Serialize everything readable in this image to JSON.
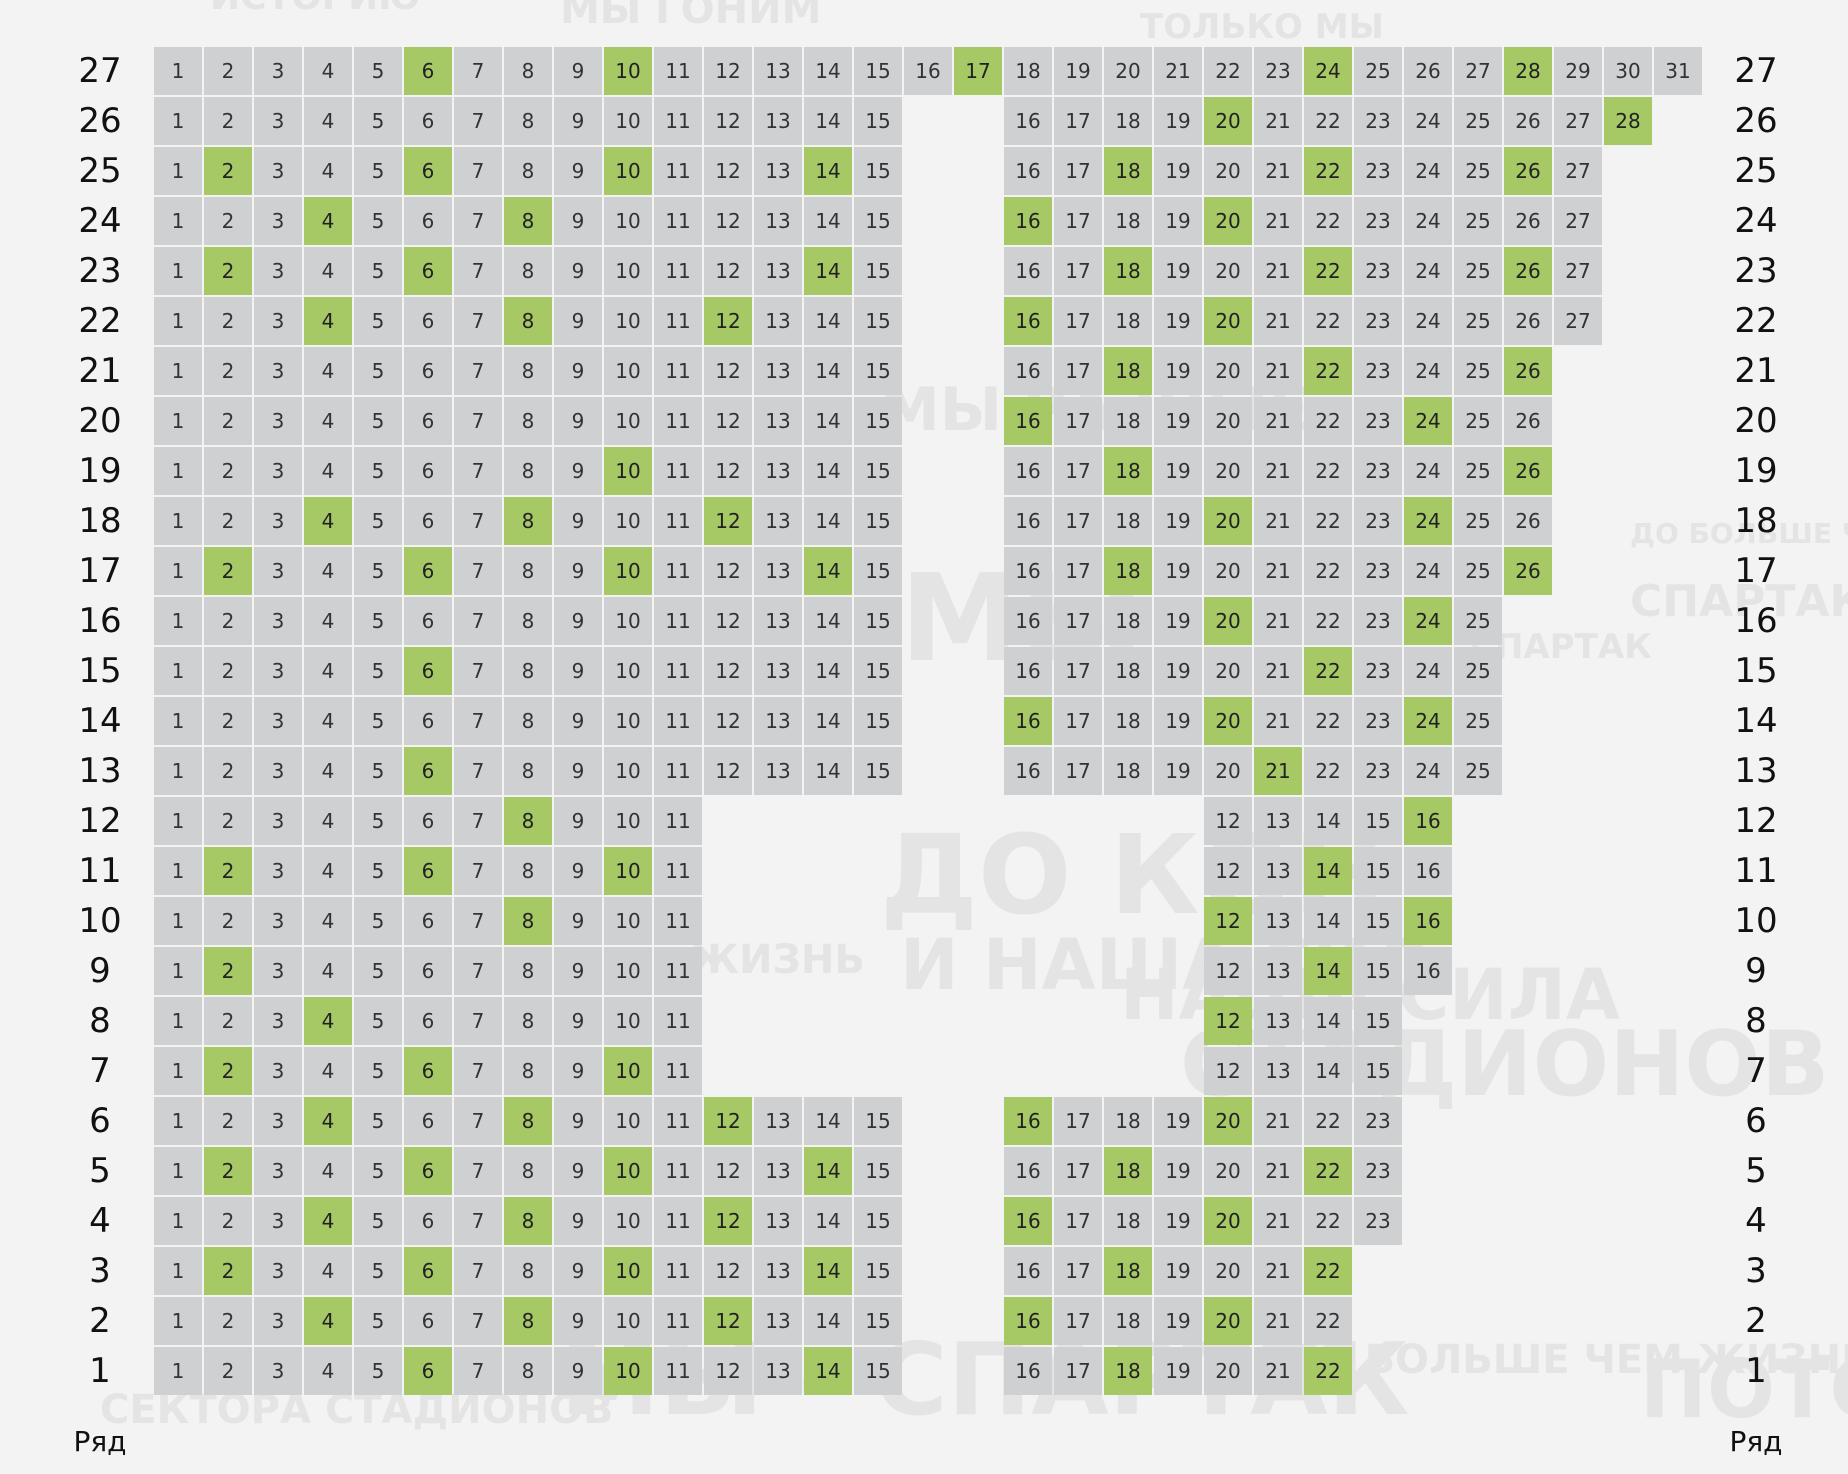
{
  "row_word": "Ряд",
  "background_words": [
    "МЫ ГОНИМ",
    "ТОЛЬКО МЫ",
    "ИСТОРИЮ",
    "МЫ РАЗНЫЕ",
    "МЫ",
    "ДО КОН",
    "И НАША СИЛ",
    "ЖИЗНЬ",
    "МЫ - СПАРТАК",
    "ЭТО БОЛЬШЕ ЧЕМ ЖИЗНЬ",
    "ПОТОМ",
    "СПАРТАК - ЭТО",
    "ДО БОЛЬШЕ ЧЕМ",
    "СЕКТОРА СТАДИОНОВ",
    "НАША СИЛА",
    "СПАРТАК",
    "СТАДИОНОВ"
  ],
  "highlight_colors": {
    "seat": "#cfd0d2",
    "free": "#a6c965"
  },
  "rows": [
    {
      "row": 27,
      "blocks": [
        {
          "from": 1,
          "to": 31,
          "col": 0
        }
      ],
      "free": [
        6,
        10,
        17,
        24,
        28
      ]
    },
    {
      "row": 26,
      "blocks": [
        {
          "from": 1,
          "to": 15,
          "col": 0
        },
        {
          "from": 16,
          "to": 28,
          "col": 17
        }
      ],
      "free": [
        20,
        28
      ]
    },
    {
      "row": 25,
      "blocks": [
        {
          "from": 1,
          "to": 15,
          "col": 0
        },
        {
          "from": 16,
          "to": 27,
          "col": 17
        }
      ],
      "free": [
        2,
        6,
        10,
        14,
        18,
        22,
        26
      ]
    },
    {
      "row": 24,
      "blocks": [
        {
          "from": 1,
          "to": 15,
          "col": 0
        },
        {
          "from": 16,
          "to": 27,
          "col": 17
        }
      ],
      "free": [
        4,
        8,
        16,
        20
      ]
    },
    {
      "row": 23,
      "blocks": [
        {
          "from": 1,
          "to": 15,
          "col": 0
        },
        {
          "from": 16,
          "to": 27,
          "col": 17
        }
      ],
      "free": [
        2,
        6,
        14,
        18,
        22,
        26
      ]
    },
    {
      "row": 22,
      "blocks": [
        {
          "from": 1,
          "to": 15,
          "col": 0
        },
        {
          "from": 16,
          "to": 27,
          "col": 17
        }
      ],
      "free": [
        4,
        8,
        12,
        16,
        20
      ]
    },
    {
      "row": 21,
      "blocks": [
        {
          "from": 1,
          "to": 15,
          "col": 0
        },
        {
          "from": 16,
          "to": 26,
          "col": 17
        }
      ],
      "free": [
        18,
        22,
        26
      ]
    },
    {
      "row": 20,
      "blocks": [
        {
          "from": 1,
          "to": 15,
          "col": 0
        },
        {
          "from": 16,
          "to": 26,
          "col": 17
        }
      ],
      "free": [
        16,
        24
      ]
    },
    {
      "row": 19,
      "blocks": [
        {
          "from": 1,
          "to": 15,
          "col": 0
        },
        {
          "from": 16,
          "to": 26,
          "col": 17
        }
      ],
      "free": [
        10,
        18,
        26
      ]
    },
    {
      "row": 18,
      "blocks": [
        {
          "from": 1,
          "to": 15,
          "col": 0
        },
        {
          "from": 16,
          "to": 26,
          "col": 17
        }
      ],
      "free": [
        4,
        8,
        12,
        20,
        24
      ]
    },
    {
      "row": 17,
      "blocks": [
        {
          "from": 1,
          "to": 15,
          "col": 0
        },
        {
          "from": 16,
          "to": 26,
          "col": 17
        }
      ],
      "free": [
        2,
        6,
        10,
        14,
        18,
        26
      ]
    },
    {
      "row": 16,
      "blocks": [
        {
          "from": 1,
          "to": 15,
          "col": 0
        },
        {
          "from": 16,
          "to": 25,
          "col": 17
        }
      ],
      "free": [
        20,
        24
      ]
    },
    {
      "row": 15,
      "blocks": [
        {
          "from": 1,
          "to": 15,
          "col": 0
        },
        {
          "from": 16,
          "to": 25,
          "col": 17
        }
      ],
      "free": [
        6,
        22
      ]
    },
    {
      "row": 14,
      "blocks": [
        {
          "from": 1,
          "to": 15,
          "col": 0
        },
        {
          "from": 16,
          "to": 25,
          "col": 17
        }
      ],
      "free": [
        16,
        20,
        24
      ]
    },
    {
      "row": 13,
      "blocks": [
        {
          "from": 1,
          "to": 15,
          "col": 0
        },
        {
          "from": 16,
          "to": 25,
          "col": 17
        }
      ],
      "free": [
        6,
        21
      ]
    },
    {
      "row": 12,
      "blocks": [
        {
          "from": 1,
          "to": 11,
          "col": 0
        },
        {
          "from": 12,
          "to": 16,
          "col": 21
        }
      ],
      "free": [
        8,
        16
      ]
    },
    {
      "row": 11,
      "blocks": [
        {
          "from": 1,
          "to": 11,
          "col": 0
        },
        {
          "from": 12,
          "to": 16,
          "col": 21
        }
      ],
      "free": [
        2,
        6,
        10,
        14
      ]
    },
    {
      "row": 10,
      "blocks": [
        {
          "from": 1,
          "to": 11,
          "col": 0
        },
        {
          "from": 12,
          "to": 16,
          "col": 21
        }
      ],
      "free": [
        8,
        12,
        16
      ]
    },
    {
      "row": 9,
      "blocks": [
        {
          "from": 1,
          "to": 11,
          "col": 0
        },
        {
          "from": 12,
          "to": 16,
          "col": 21
        }
      ],
      "free": [
        2,
        14
      ]
    },
    {
      "row": 8,
      "blocks": [
        {
          "from": 1,
          "to": 11,
          "col": 0
        },
        {
          "from": 12,
          "to": 15,
          "col": 21
        }
      ],
      "free": [
        4,
        12
      ]
    },
    {
      "row": 7,
      "blocks": [
        {
          "from": 1,
          "to": 11,
          "col": 0
        },
        {
          "from": 12,
          "to": 15,
          "col": 21
        }
      ],
      "free": [
        2,
        6,
        10
      ]
    },
    {
      "row": 6,
      "blocks": [
        {
          "from": 1,
          "to": 15,
          "col": 0
        },
        {
          "from": 16,
          "to": 23,
          "col": 17
        }
      ],
      "free": [
        4,
        8,
        12,
        16,
        20
      ]
    },
    {
      "row": 5,
      "blocks": [
        {
          "from": 1,
          "to": 15,
          "col": 0
        },
        {
          "from": 16,
          "to": 23,
          "col": 17
        }
      ],
      "free": [
        2,
        6,
        10,
        14,
        18,
        22
      ]
    },
    {
      "row": 4,
      "blocks": [
        {
          "from": 1,
          "to": 15,
          "col": 0
        },
        {
          "from": 16,
          "to": 23,
          "col": 17
        }
      ],
      "free": [
        4,
        8,
        12,
        16,
        20
      ]
    },
    {
      "row": 3,
      "blocks": [
        {
          "from": 1,
          "to": 15,
          "col": 0
        },
        {
          "from": 16,
          "to": 22,
          "col": 17
        }
      ],
      "free": [
        2,
        6,
        10,
        14,
        18,
        22
      ]
    },
    {
      "row": 2,
      "blocks": [
        {
          "from": 1,
          "to": 15,
          "col": 0
        },
        {
          "from": 16,
          "to": 22,
          "col": 17
        }
      ],
      "free": [
        4,
        8,
        12,
        16,
        20
      ]
    },
    {
      "row": 1,
      "blocks": [
        {
          "from": 1,
          "to": 15,
          "col": 0
        },
        {
          "from": 16,
          "to": 22,
          "col": 17
        }
      ],
      "free": [
        6,
        10,
        14,
        18,
        22
      ]
    }
  ]
}
